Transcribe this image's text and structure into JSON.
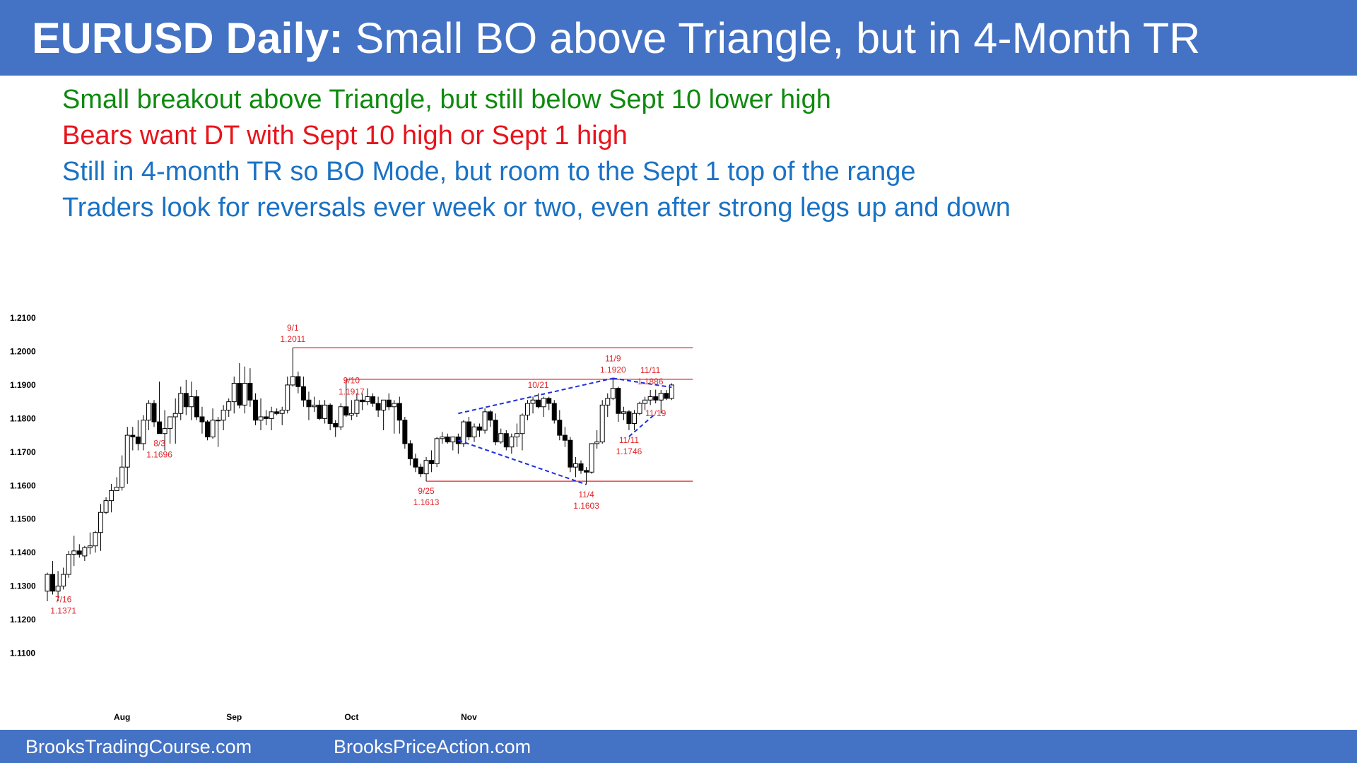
{
  "header": {
    "title_bold": "EURUSD Daily:",
    "title_rest": "Small BO above Triangle, but in 4-Month TR"
  },
  "bullets": [
    {
      "text": "Small breakout above Triangle, but still below Sept 10 lower high",
      "color": "#0f8a0f"
    },
    {
      "text": "Bears want DT with Sept 10 high or Sept 1 high",
      "color": "#e8141c"
    },
    {
      "text": "Still in 4-month TR so BO Mode, but room to the Sept 1 top of the range",
      "color": "#1a72c4"
    },
    {
      "text": "Traders look for reversals ever week or two, even after strong legs up and down",
      "color": "#1a72c4"
    }
  ],
  "footer": {
    "left": "BrooksTradingCourse.com",
    "right": "BrooksPriceAction.com"
  },
  "colors": {
    "accent": "#4472c4",
    "annotation": "#e0262b",
    "triangle": "#1f2fe0",
    "candle_up": "#ffffff",
    "candle_down": "#000000"
  },
  "chart_data": {
    "type": "candlestick",
    "title": "",
    "xlabel": "",
    "ylabel": "",
    "ylim": [
      1.1,
      1.21
    ],
    "y_ticks": [
      "1.2100",
      "1.2000",
      "1.1900",
      "1.1800",
      "1.1700",
      "1.1600",
      "1.1500",
      "1.1400",
      "1.1300",
      "1.1200",
      "1.1100"
    ],
    "x_ticks": [
      {
        "label": "Aug",
        "date": "2020-08-03"
      },
      {
        "label": "Sep",
        "date": "2020-09-01"
      },
      {
        "label": "Oct",
        "date": "2020-10-01"
      },
      {
        "label": "Nov",
        "date": "2020-11-02"
      }
    ],
    "candles": [
      {
        "date": "2020-07-14",
        "o": 1.1285,
        "h": 1.134,
        "l": 1.1255,
        "c": 1.1335
      },
      {
        "date": "2020-07-15",
        "o": 1.1335,
        "h": 1.1375,
        "l": 1.1275,
        "c": 1.1285
      },
      {
        "date": "2020-07-16",
        "o": 1.1285,
        "h": 1.1345,
        "l": 1.1255,
        "c": 1.13
      },
      {
        "date": "2020-07-17",
        "o": 1.13,
        "h": 1.1355,
        "l": 1.129,
        "c": 1.1335
      },
      {
        "date": "2020-07-20",
        "o": 1.1335,
        "h": 1.1405,
        "l": 1.1325,
        "c": 1.1395
      },
      {
        "date": "2020-07-21",
        "o": 1.1395,
        "h": 1.145,
        "l": 1.136,
        "c": 1.1405
      },
      {
        "date": "2020-07-22",
        "o": 1.1405,
        "h": 1.1425,
        "l": 1.1385,
        "c": 1.1395
      },
      {
        "date": "2020-07-23",
        "o": 1.139,
        "h": 1.142,
        "l": 1.1375,
        "c": 1.1415
      },
      {
        "date": "2020-07-24",
        "o": 1.1415,
        "h": 1.146,
        "l": 1.1395,
        "c": 1.142
      },
      {
        "date": "2020-07-27",
        "o": 1.142,
        "h": 1.1465,
        "l": 1.14,
        "c": 1.146
      },
      {
        "date": "2020-07-28",
        "o": 1.146,
        "h": 1.1545,
        "l": 1.1405,
        "c": 1.152
      },
      {
        "date": "2020-07-29",
        "o": 1.152,
        "h": 1.1565,
        "l": 1.1515,
        "c": 1.1555
      },
      {
        "date": "2020-07-30",
        "o": 1.1555,
        "h": 1.1605,
        "l": 1.152,
        "c": 1.1585
      },
      {
        "date": "2020-07-31",
        "o": 1.1585,
        "h": 1.1625,
        "l": 1.1585,
        "c": 1.1595
      },
      {
        "date": "2020-08-03",
        "o": 1.1595,
        "h": 1.169,
        "l": 1.1585,
        "c": 1.1655
      },
      {
        "date": "2020-08-04",
        "o": 1.1655,
        "h": 1.1775,
        "l": 1.1605,
        "c": 1.175
      },
      {
        "date": "2020-08-05",
        "o": 1.175,
        "h": 1.1775,
        "l": 1.1705,
        "c": 1.1745
      },
      {
        "date": "2020-08-06",
        "o": 1.1745,
        "h": 1.1795,
        "l": 1.1705,
        "c": 1.1725
      },
      {
        "date": "2020-08-07",
        "o": 1.1725,
        "h": 1.181,
        "l": 1.1705,
        "c": 1.1795
      },
      {
        "date": "2020-08-10",
        "o": 1.1795,
        "h": 1.1855,
        "l": 1.1765,
        "c": 1.1845
      },
      {
        "date": "2020-08-11",
        "o": 1.1845,
        "h": 1.1855,
        "l": 1.1775,
        "c": 1.179
      },
      {
        "date": "2020-08-12",
        "o": 1.179,
        "h": 1.191,
        "l": 1.1755,
        "c": 1.1755
      },
      {
        "date": "2020-08-13",
        "o": 1.1755,
        "h": 1.1825,
        "l": 1.1705,
        "c": 1.177
      },
      {
        "date": "2020-08-14",
        "o": 1.177,
        "h": 1.1805,
        "l": 1.1725,
        "c": 1.1805
      },
      {
        "date": "2020-08-17",
        "o": 1.1805,
        "h": 1.186,
        "l": 1.1725,
        "c": 1.1815
      },
      {
        "date": "2020-08-18",
        "o": 1.1815,
        "h": 1.1895,
        "l": 1.1795,
        "c": 1.1875
      },
      {
        "date": "2020-08-19",
        "o": 1.1875,
        "h": 1.1915,
        "l": 1.181,
        "c": 1.1835
      },
      {
        "date": "2020-08-20",
        "o": 1.1835,
        "h": 1.191,
        "l": 1.1795,
        "c": 1.1865
      },
      {
        "date": "2020-08-21",
        "o": 1.1865,
        "h": 1.1885,
        "l": 1.1795,
        "c": 1.1805
      },
      {
        "date": "2020-08-24",
        "o": 1.1805,
        "h": 1.1835,
        "l": 1.1755,
        "c": 1.179
      },
      {
        "date": "2020-08-25",
        "o": 1.179,
        "h": 1.1795,
        "l": 1.1735,
        "c": 1.1745
      },
      {
        "date": "2020-08-26",
        "o": 1.1745,
        "h": 1.183,
        "l": 1.174,
        "c": 1.1795
      },
      {
        "date": "2020-08-27",
        "o": 1.1795,
        "h": 1.1805,
        "l": 1.1715,
        "c": 1.1795
      },
      {
        "date": "2020-08-28",
        "o": 1.1795,
        "h": 1.184,
        "l": 1.1765,
        "c": 1.1825
      },
      {
        "date": "2020-08-31",
        "o": 1.1825,
        "h": 1.186,
        "l": 1.1805,
        "c": 1.185
      },
      {
        "date": "2020-09-01",
        "o": 1.185,
        "h": 1.1925,
        "l": 1.1815,
        "c": 1.1905
      },
      {
        "date": "2020-09-02",
        "o": 1.1905,
        "h": 1.1965,
        "l": 1.183,
        "c": 1.184
      },
      {
        "date": "2020-09-03",
        "o": 1.184,
        "h": 1.1955,
        "l": 1.1815,
        "c": 1.1905
      },
      {
        "date": "2020-09-04",
        "o": 1.1905,
        "h": 1.195,
        "l": 1.1835,
        "c": 1.1855
      },
      {
        "date": "2020-09-07",
        "o": 1.1855,
        "h": 1.1875,
        "l": 1.178,
        "c": 1.1795
      },
      {
        "date": "2020-09-08",
        "o": 1.1795,
        "h": 1.186,
        "l": 1.1765,
        "c": 1.1805
      },
      {
        "date": "2020-09-09",
        "o": 1.1805,
        "h": 1.1825,
        "l": 1.178,
        "c": 1.18
      },
      {
        "date": "2020-09-10",
        "o": 1.18,
        "h": 1.1835,
        "l": 1.1765,
        "c": 1.182
      },
      {
        "date": "2020-09-11",
        "o": 1.182,
        "h": 1.183,
        "l": 1.181,
        "c": 1.1815
      },
      {
        "date": "2020-09-14",
        "o": 1.1815,
        "h": 1.1835,
        "l": 1.178,
        "c": 1.1825
      },
      {
        "date": "2020-09-15",
        "o": 1.1825,
        "h": 1.1925,
        "l": 1.1815,
        "c": 1.19
      },
      {
        "date": "2020-09-16",
        "o": 1.19,
        "h": 1.2011,
        "l": 1.1895,
        "c": 1.1925
      },
      {
        "date": "2020-09-17",
        "o": 1.1925,
        "h": 1.194,
        "l": 1.1875,
        "c": 1.1895
      },
      {
        "date": "2020-09-18",
        "o": 1.1895,
        "h": 1.1925,
        "l": 1.1835,
        "c": 1.1855
      },
      {
        "date": "2020-09-21",
        "o": 1.1855,
        "h": 1.188,
        "l": 1.1795,
        "c": 1.1835
      },
      {
        "date": "2020-09-22",
        "o": 1.1835,
        "h": 1.1865,
        "l": 1.182,
        "c": 1.184
      },
      {
        "date": "2020-09-23",
        "o": 1.184,
        "h": 1.1855,
        "l": 1.1795,
        "c": 1.18
      },
      {
        "date": "2020-09-24",
        "o": 1.18,
        "h": 1.1855,
        "l": 1.1785,
        "c": 1.184
      },
      {
        "date": "2020-09-25",
        "o": 1.184,
        "h": 1.1845,
        "l": 1.1765,
        "c": 1.1785
      },
      {
        "date": "2020-09-28",
        "o": 1.1785,
        "h": 1.1795,
        "l": 1.1745,
        "c": 1.1775
      },
      {
        "date": "2020-09-29",
        "o": 1.1775,
        "h": 1.1845,
        "l": 1.1765,
        "c": 1.1835
      },
      {
        "date": "2020-09-30",
        "o": 1.1835,
        "h": 1.1917,
        "l": 1.1805,
        "c": 1.181
      },
      {
        "date": "2020-10-01",
        "o": 1.181,
        "h": 1.1855,
        "l": 1.1795,
        "c": 1.1815
      },
      {
        "date": "2020-10-02",
        "o": 1.1815,
        "h": 1.1875,
        "l": 1.1805,
        "c": 1.1855
      },
      {
        "date": "2020-10-05",
        "o": 1.1855,
        "h": 1.1875,
        "l": 1.1825,
        "c": 1.185
      },
      {
        "date": "2020-10-06",
        "o": 1.185,
        "h": 1.189,
        "l": 1.184,
        "c": 1.1865
      },
      {
        "date": "2020-10-07",
        "o": 1.1865,
        "h": 1.1875,
        "l": 1.1835,
        "c": 1.1845
      },
      {
        "date": "2020-10-08",
        "o": 1.1845,
        "h": 1.1865,
        "l": 1.1805,
        "c": 1.1825
      },
      {
        "date": "2020-10-09",
        "o": 1.1825,
        "h": 1.1855,
        "l": 1.1765,
        "c": 1.1855
      },
      {
        "date": "2020-10-12",
        "o": 1.1855,
        "h": 1.1875,
        "l": 1.1825,
        "c": 1.1835
      },
      {
        "date": "2020-10-13",
        "o": 1.1835,
        "h": 1.1855,
        "l": 1.1755,
        "c": 1.1845
      },
      {
        "date": "2020-10-14",
        "o": 1.1845,
        "h": 1.1865,
        "l": 1.1755,
        "c": 1.1795
      },
      {
        "date": "2020-10-15",
        "o": 1.1795,
        "h": 1.1805,
        "l": 1.171,
        "c": 1.1725
      },
      {
        "date": "2020-10-16",
        "o": 1.1725,
        "h": 1.1735,
        "l": 1.166,
        "c": 1.168
      },
      {
        "date": "2020-10-19",
        "o": 1.168,
        "h": 1.1695,
        "l": 1.164,
        "c": 1.1655
      },
      {
        "date": "2020-10-20",
        "o": 1.1655,
        "h": 1.1665,
        "l": 1.1625,
        "c": 1.1635
      },
      {
        "date": "2020-10-21",
        "o": 1.1635,
        "h": 1.1685,
        "l": 1.1613,
        "c": 1.1675
      },
      {
        "date": "2020-10-22",
        "o": 1.1675,
        "h": 1.1705,
        "l": 1.164,
        "c": 1.1665
      },
      {
        "date": "2020-10-23",
        "o": 1.1665,
        "h": 1.1745,
        "l": 1.1655,
        "c": 1.174
      },
      {
        "date": "2020-10-26",
        "o": 1.174,
        "h": 1.176,
        "l": 1.1725,
        "c": 1.1745
      },
      {
        "date": "2020-10-27",
        "o": 1.1745,
        "h": 1.1755,
        "l": 1.1725,
        "c": 1.173
      },
      {
        "date": "2020-10-28",
        "o": 1.173,
        "h": 1.1745,
        "l": 1.1705,
        "c": 1.1745
      },
      {
        "date": "2020-10-29",
        "o": 1.1745,
        "h": 1.1755,
        "l": 1.1695,
        "c": 1.1725
      },
      {
        "date": "2020-10-30",
        "o": 1.1725,
        "h": 1.1795,
        "l": 1.1715,
        "c": 1.179
      },
      {
        "date": "2020-11-02",
        "o": 1.179,
        "h": 1.1805,
        "l": 1.1735,
        "c": 1.1745
      },
      {
        "date": "2020-11-03",
        "o": 1.1745,
        "h": 1.1785,
        "l": 1.173,
        "c": 1.1775
      },
      {
        "date": "2020-11-04",
        "o": 1.1775,
        "h": 1.1785,
        "l": 1.1745,
        "c": 1.1765
      },
      {
        "date": "2020-11-05",
        "o": 1.1765,
        "h": 1.183,
        "l": 1.1755,
        "c": 1.182
      },
      {
        "date": "2020-11-06",
        "o": 1.182,
        "h": 1.1825,
        "l": 1.1775,
        "c": 1.1795
      },
      {
        "date": "2020-11-09",
        "o": 1.1795,
        "h": 1.1815,
        "l": 1.172,
        "c": 1.173
      },
      {
        "date": "2020-11-10",
        "o": 1.173,
        "h": 1.177,
        "l": 1.1725,
        "c": 1.1755
      },
      {
        "date": "2020-11-11",
        "o": 1.1755,
        "h": 1.1765,
        "l": 1.1705,
        "c": 1.1715
      },
      {
        "date": "2020-11-12",
        "o": 1.1715,
        "h": 1.1755,
        "l": 1.1695,
        "c": 1.1745
      },
      {
        "date": "2020-11-13",
        "o": 1.1745,
        "h": 1.1785,
        "l": 1.1715,
        "c": 1.1755
      },
      {
        "date": "2020-11-16",
        "o": 1.1755,
        "h": 1.1815,
        "l": 1.1705,
        "c": 1.181
      },
      {
        "date": "2020-11-17",
        "o": 1.181,
        "h": 1.1855,
        "l": 1.1795,
        "c": 1.1845
      },
      {
        "date": "2020-11-18",
        "o": 1.1845,
        "h": 1.1865,
        "l": 1.1815,
        "c": 1.1855
      },
      {
        "date": "2020-11-19",
        "o": 1.1855,
        "h": 1.1875,
        "l": 1.183,
        "c": 1.1835
      },
      {
        "date": "2020-11-20",
        "o": 1.1835,
        "h": 1.1865,
        "l": 1.1805,
        "c": 1.186
      },
      {
        "date": "2020-11-23",
        "o": 1.186,
        "h": 1.1865,
        "l": 1.1825,
        "c": 1.1845
      },
      {
        "date": "2020-11-24",
        "o": 1.1845,
        "h": 1.1855,
        "l": 1.1785,
        "c": 1.1795
      },
      {
        "date": "2020-11-25",
        "o": 1.1795,
        "h": 1.1825,
        "l": 1.1735,
        "c": 1.175
      },
      {
        "date": "2020-11-26",
        "o": 1.175,
        "h": 1.1775,
        "l": 1.1715,
        "c": 1.1735
      },
      {
        "date": "2020-11-27",
        "o": 1.1735,
        "h": 1.1745,
        "l": 1.164,
        "c": 1.1655
      },
      {
        "date": "2020-11-30",
        "o": 1.1655,
        "h": 1.1685,
        "l": 1.1625,
        "c": 1.1665
      },
      {
        "date": "2020-12-01",
        "o": 1.1665,
        "h": 1.1675,
        "l": 1.1635,
        "c": 1.1645
      },
      {
        "date": "2020-12-02",
        "o": 1.1645,
        "h": 1.1655,
        "l": 1.1603,
        "c": 1.164
      },
      {
        "date": "2020-12-03",
        "o": 1.164,
        "h": 1.1725,
        "l": 1.1635,
        "c": 1.1725
      },
      {
        "date": "2020-12-04",
        "o": 1.1725,
        "h": 1.1765,
        "l": 1.171,
        "c": 1.173
      },
      {
        "date": "2020-12-07",
        "o": 1.173,
        "h": 1.1855,
        "l": 1.1725,
        "c": 1.184
      },
      {
        "date": "2020-12-08",
        "o": 1.184,
        "h": 1.1875,
        "l": 1.1805,
        "c": 1.186
      },
      {
        "date": "2020-12-09",
        "o": 1.186,
        "h": 1.192,
        "l": 1.1855,
        "c": 1.189
      },
      {
        "date": "2020-12-10",
        "o": 1.189,
        "h": 1.1895,
        "l": 1.179,
        "c": 1.1815
      },
      {
        "date": "2020-12-11",
        "o": 1.1815,
        "h": 1.1835,
        "l": 1.1795,
        "c": 1.182
      },
      {
        "date": "2020-12-14",
        "o": 1.182,
        "h": 1.1825,
        "l": 1.1765,
        "c": 1.1785
      },
      {
        "date": "2020-12-15",
        "o": 1.1785,
        "h": 1.1825,
        "l": 1.1765,
        "c": 1.1815
      },
      {
        "date": "2020-12-16",
        "o": 1.1815,
        "h": 1.185,
        "l": 1.181,
        "c": 1.1845
      },
      {
        "date": "2020-12-17",
        "o": 1.1845,
        "h": 1.1865,
        "l": 1.1825,
        "c": 1.1855
      },
      {
        "date": "2020-12-18",
        "o": 1.1855,
        "h": 1.1885,
        "l": 1.184,
        "c": 1.1865
      },
      {
        "date": "2020-12-21",
        "o": 1.1865,
        "h": 1.1886,
        "l": 1.1845,
        "c": 1.1855
      },
      {
        "date": "2020-12-22",
        "o": 1.1855,
        "h": 1.1885,
        "l": 1.1815,
        "c": 1.1875
      },
      {
        "date": "2020-12-23",
        "o": 1.1875,
        "h": 1.1885,
        "l": 1.1855,
        "c": 1.186
      },
      {
        "date": "2020-12-24",
        "o": 1.186,
        "h": 1.1905,
        "l": 1.1855,
        "c": 1.19
      }
    ],
    "horizontal_lines": [
      1.2011,
      1.1917,
      1.1613
    ],
    "annotations": [
      {
        "date": "2020-07-17",
        "anchor": "below",
        "lines": [
          "7/16",
          "1.1371"
        ]
      },
      {
        "date": "2020-08-12",
        "anchor": "below",
        "lines": [
          "8/3",
          "1.1696"
        ]
      },
      {
        "date": "2020-09-16",
        "anchor": "above",
        "lines": [
          "9/1",
          "1.2011"
        ]
      },
      {
        "date": "2020-10-01",
        "anchor": "above",
        "lines": [
          "9/10",
          "1.1917"
        ]
      },
      {
        "date": "2020-10-21",
        "anchor": "below",
        "lines": [
          "9/25",
          "1.1613"
        ]
      },
      {
        "date": "2020-11-19",
        "anchor": "above",
        "lines": [
          "10/21"
        ]
      },
      {
        "date": "2020-12-02",
        "anchor": "below",
        "lines": [
          "11/4",
          "1.1603"
        ]
      },
      {
        "date": "2020-12-09",
        "anchor": "above",
        "lines": [
          "11/9",
          "1.1920"
        ]
      },
      {
        "date": "2020-12-14",
        "anchor": "below",
        "lines": [
          "11/11",
          "1.1746"
        ]
      },
      {
        "date": "2020-12-18",
        "anchor": "above",
        "lines": [
          "11/11",
          "1.1886"
        ]
      },
      {
        "date": "2020-12-21",
        "anchor": "below",
        "lines": [
          "11/19"
        ]
      }
    ],
    "trendlines": [
      {
        "from": [
          "2020-10-29",
          1.1815
        ],
        "to": [
          "2020-12-09",
          1.192
        ]
      },
      {
        "from": [
          "2020-10-29",
          1.1735
        ],
        "to": [
          "2020-12-02",
          1.1603
        ]
      },
      {
        "from": [
          "2020-12-09",
          1.192
        ],
        "to": [
          "2020-12-24",
          1.1893
        ]
      },
      {
        "from": [
          "2020-12-14",
          1.1746
        ],
        "to": [
          "2020-12-21",
          1.1815
        ]
      }
    ]
  }
}
